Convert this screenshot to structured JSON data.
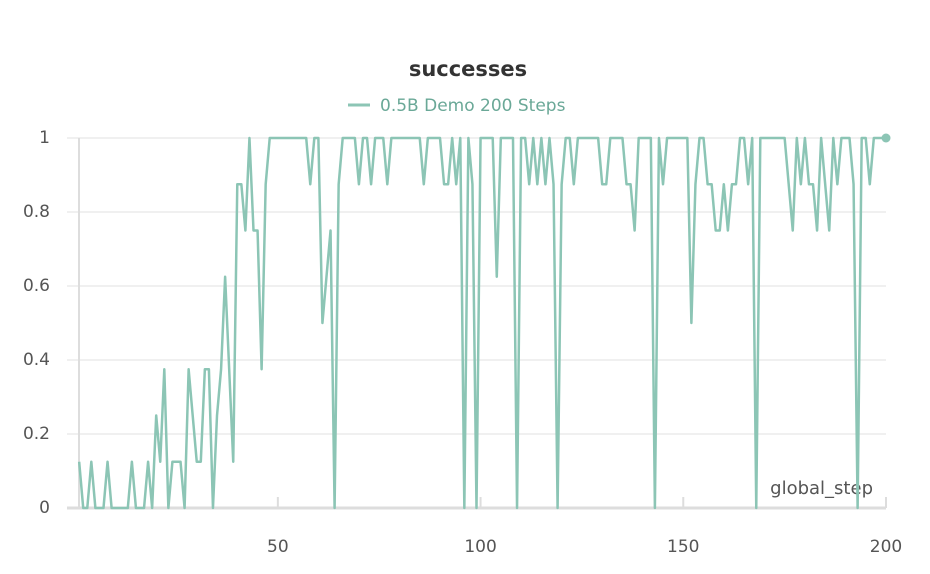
{
  "chart_data": {
    "type": "line",
    "title": "successes",
    "x_label": "global_step",
    "x": [
      1,
      2,
      3,
      4,
      5,
      6,
      7,
      8,
      9,
      10,
      11,
      12,
      13,
      14,
      15,
      16,
      17,
      18,
      19,
      20,
      21,
      22,
      23,
      24,
      25,
      26,
      27,
      28,
      29,
      30,
      31,
      32,
      33,
      34,
      35,
      36,
      37,
      38,
      39,
      40,
      41,
      42,
      43,
      44,
      45,
      46,
      47,
      48,
      49,
      50,
      51,
      52,
      53,
      54,
      55,
      56,
      57,
      58,
      59,
      60,
      61,
      62,
      63,
      64,
      65,
      66,
      67,
      68,
      69,
      70,
      71,
      72,
      73,
      74,
      75,
      76,
      77,
      78,
      79,
      80,
      81,
      82,
      83,
      84,
      85,
      86,
      87,
      88,
      89,
      90,
      91,
      92,
      93,
      94,
      95,
      96,
      97,
      98,
      99,
      100,
      101,
      102,
      103,
      104,
      105,
      106,
      107,
      108,
      109,
      110,
      111,
      112,
      113,
      114,
      115,
      116,
      117,
      118,
      119,
      120,
      121,
      122,
      123,
      124,
      125,
      126,
      127,
      128,
      129,
      130,
      131,
      132,
      133,
      134,
      135,
      136,
      137,
      138,
      139,
      140,
      141,
      142,
      143,
      144,
      145,
      146,
      147,
      148,
      149,
      150,
      151,
      152,
      153,
      154,
      155,
      156,
      157,
      158,
      159,
      160,
      161,
      162,
      163,
      164,
      165,
      166,
      167,
      168,
      169,
      170,
      171,
      172,
      173,
      174,
      175,
      176,
      177,
      178,
      179,
      180,
      181,
      182,
      183,
      184,
      185,
      186,
      187,
      188,
      189,
      190,
      191,
      192,
      193,
      194,
      195,
      196,
      197,
      198,
      199,
      200
    ],
    "series": [
      {
        "name": "0.5B Demo 200 Steps",
        "color": "#8cc5b5",
        "values": [
          0.125,
          0,
          0,
          0.125,
          0,
          0,
          0,
          0.125,
          0,
          0,
          0,
          0,
          0,
          0.125,
          0,
          0,
          0,
          0.125,
          0,
          0.25,
          0.125,
          0.375,
          0,
          0.125,
          0.125,
          0.125,
          0,
          0.375,
          0.25,
          0.125,
          0.125,
          0.375,
          0.375,
          0,
          0.25,
          0.375,
          0.625,
          0.375,
          0.125,
          0.875,
          0.875,
          0.75,
          1,
          0.75,
          0.75,
          0.375,
          0.875,
          1,
          1,
          1,
          1,
          1,
          1,
          1,
          1,
          1,
          1,
          0.875,
          1,
          1,
          0.5,
          0.625,
          0.75,
          0,
          0.875,
          1,
          1,
          1,
          1,
          0.875,
          1,
          1,
          0.875,
          1,
          1,
          1,
          0.875,
          1,
          1,
          1,
          1,
          1,
          1,
          1,
          1,
          0.875,
          1,
          1,
          1,
          1,
          0.875,
          0.875,
          1,
          0.875,
          1,
          0,
          1,
          0.875,
          0,
          1,
          1,
          1,
          1,
          0.625,
          1,
          1,
          1,
          1,
          0,
          1,
          1,
          0.875,
          1,
          0.875,
          1,
          0.875,
          1,
          0.875,
          0,
          0.875,
          1,
          1,
          0.875,
          1,
          1,
          1,
          1,
          1,
          1,
          0.875,
          0.875,
          1,
          1,
          1,
          1,
          0.875,
          0.875,
          0.75,
          1,
          1,
          1,
          1,
          0,
          1,
          0.875,
          1,
          1,
          1,
          1,
          1,
          1,
          0.5,
          0.875,
          1,
          1,
          0.875,
          0.875,
          0.75,
          0.75,
          0.875,
          0.75,
          0.875,
          0.875,
          1,
          1,
          0.875,
          1,
          0,
          1,
          1,
          1,
          1,
          1,
          1,
          1,
          0.875,
          0.75,
          1,
          0.875,
          1,
          0.875,
          0.875,
          0.75,
          1,
          0.875,
          0.75,
          1,
          0.875,
          1,
          1,
          1,
          0.875,
          0,
          1,
          1,
          0.875,
          1,
          1,
          1,
          1
        ]
      }
    ],
    "xlim": [
      -2,
      200
    ],
    "xticks": [
      50,
      100,
      150,
      200
    ],
    "ylim": [
      0,
      1
    ],
    "yticks": [
      0,
      0.2,
      0.4,
      0.6,
      0.8,
      1
    ],
    "grid": true
  }
}
